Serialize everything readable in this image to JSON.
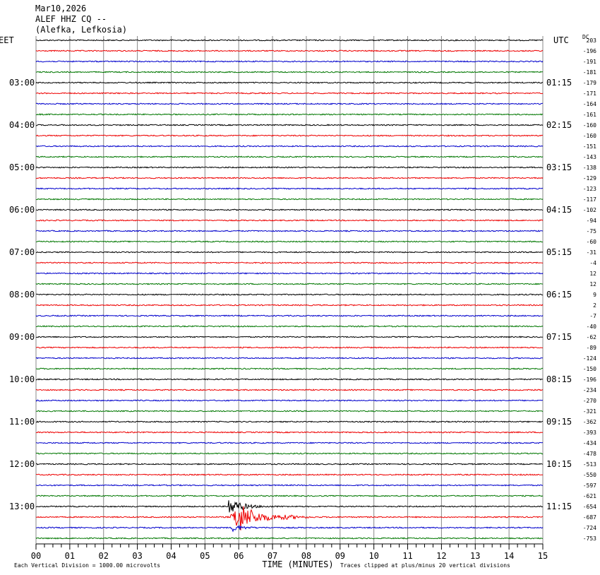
{
  "header": {
    "date": "Mar10,2026",
    "station": "ALEF HHZ CQ --",
    "location": "(Alefka, Lefkosia)"
  },
  "left_axis": {
    "title": "EET",
    "labels": [
      "03:00",
      "04:00",
      "05:00",
      "06:00",
      "07:00",
      "08:00",
      "09:00",
      "10:00",
      "11:00",
      "12:00",
      "13:00"
    ]
  },
  "right_axis": {
    "title": "UTC",
    "labels": [
      "01:15",
      "02:15",
      "03:15",
      "04:15",
      "05:15",
      "06:15",
      "07:15",
      "08:15",
      "09:15",
      "10:15",
      "11:15"
    ]
  },
  "dc_column": {
    "title": "DC",
    "values": [
      "203",
      "-196",
      "-191",
      "-181",
      "-179",
      "-171",
      "-164",
      "-161",
      "-160",
      "-160",
      "-151",
      "-143",
      "-138",
      "-129",
      "-123",
      "-117",
      "-102",
      "-94",
      "-75",
      "-60",
      "-31",
      "-4",
      "12",
      "12",
      "9",
      "2",
      "-7",
      "-40",
      "-62",
      "-89",
      "-124",
      "-150",
      "-196",
      "-234",
      "-270",
      "-321",
      "-362",
      "-393",
      "-434",
      "-478",
      "-513",
      "-550",
      "-597",
      "-621",
      "-654",
      "-687",
      "-724",
      "-753"
    ]
  },
  "x_axis": {
    "title": "TIME (MINUTES)",
    "labels": [
      "00",
      "01",
      "02",
      "03",
      "04",
      "05",
      "06",
      "07",
      "08",
      "09",
      "10",
      "11",
      "12",
      "13",
      "14",
      "15"
    ]
  },
  "footer": {
    "scale_note": "Each Vertical Division = 1000.00 microvolts",
    "clip_note": "Traces clipped at plus/minus 20 vertical divisions"
  }
}
